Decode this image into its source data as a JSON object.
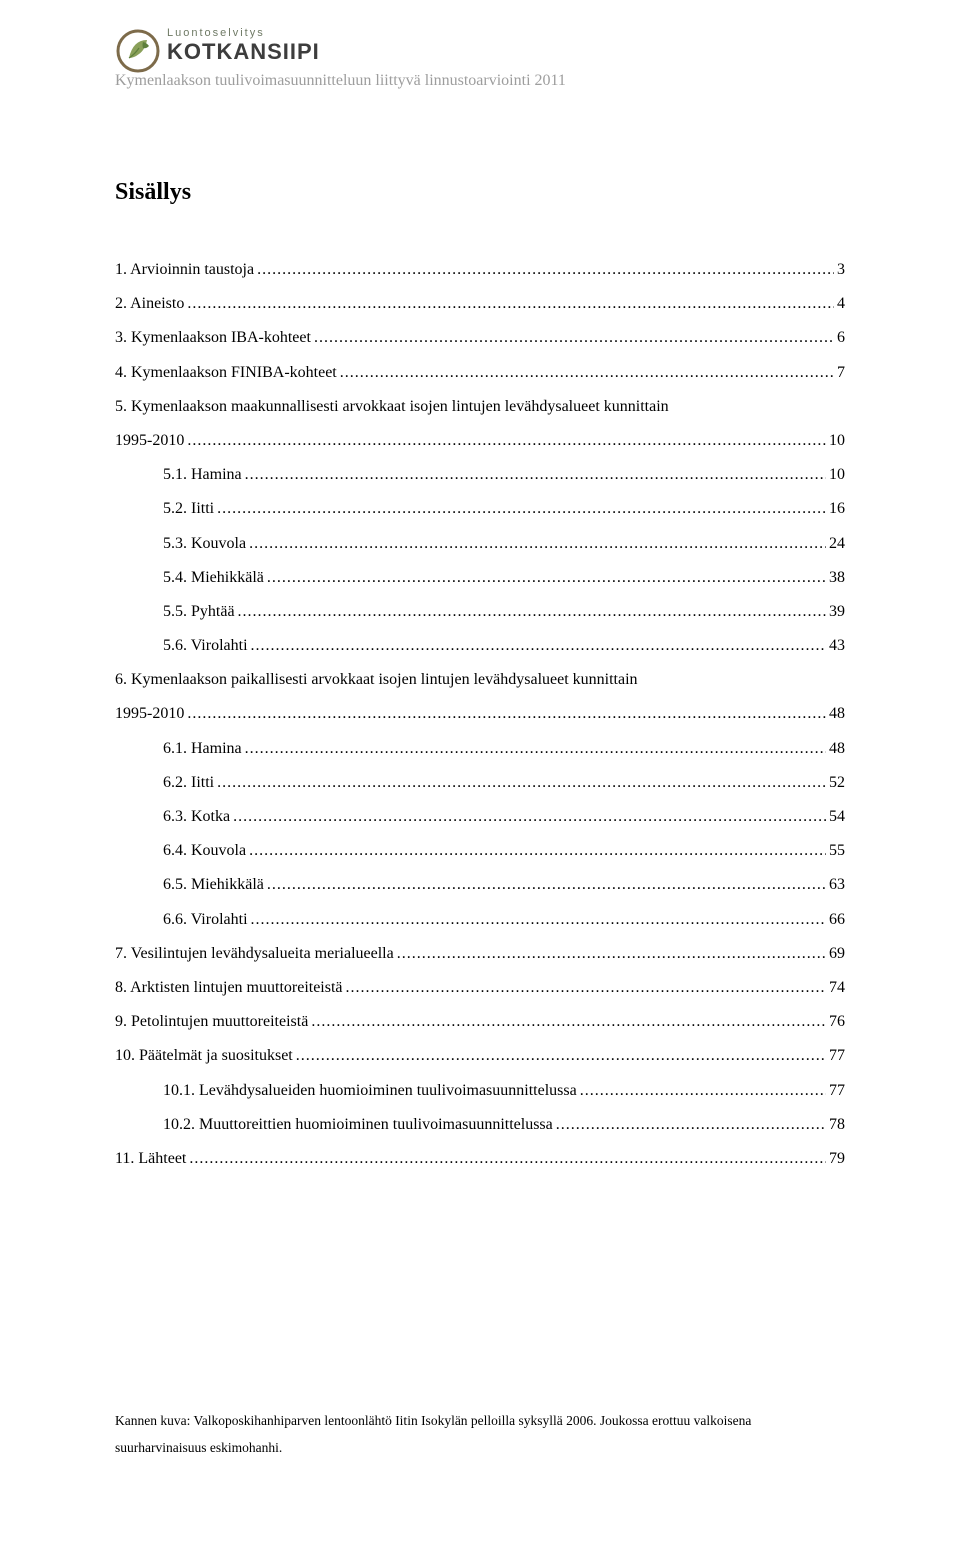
{
  "header": {
    "logo_top": "Luontoselvitys",
    "logo_bottom": "KOTKANSIIPI",
    "subline": "Kymenlaakson tuulivoimasuunnitteluun liittyvä linnustoarviointi 2011"
  },
  "toc_title": "Sisällys",
  "toc": [
    {
      "label": "1. Arvioinnin taustoja",
      "page": "3",
      "level": 0
    },
    {
      "label": "2. Aineisto",
      "page": "4",
      "level": 0
    },
    {
      "label": "3. Kymenlaakson IBA-kohteet",
      "page": "6",
      "level": 0
    },
    {
      "label": "4. Kymenlaakson FINIBA-kohteet",
      "page": "7",
      "level": 0
    },
    {
      "label": "5. Kymenlaakson maakunnallisesti arvokkaat isojen lintujen levähdysalueet kunnittain",
      "page": "",
      "level": 0,
      "nowrap": false
    },
    {
      "label": "1995-2010",
      "page": "10",
      "level": 0
    },
    {
      "label": "5.1. Hamina",
      "page": "10",
      "level": 1
    },
    {
      "label": "5.2. Iitti",
      "page": "16",
      "level": 1
    },
    {
      "label": "5.3. Kouvola",
      "page": "24",
      "level": 1
    },
    {
      "label": "5.4. Miehikkälä",
      "page": "38",
      "level": 1
    },
    {
      "label": "5.5. Pyhtää",
      "page": "39",
      "level": 1
    },
    {
      "label": "5.6. Virolahti",
      "page": "43",
      "level": 1
    },
    {
      "label": "6. Kymenlaakson paikallisesti arvokkaat isojen lintujen levähdysalueet kunnittain",
      "page": "",
      "level": 0,
      "nowrap": false
    },
    {
      "label": "1995-2010",
      "page": "48",
      "level": 0
    },
    {
      "label": "6.1. Hamina",
      "page": "48",
      "level": 1
    },
    {
      "label": "6.2. Iitti",
      "page": "52",
      "level": 1
    },
    {
      "label": "6.3. Kotka",
      "page": "54",
      "level": 1
    },
    {
      "label": "6.4. Kouvola",
      "page": "55",
      "level": 1
    },
    {
      "label": "6.5. Miehikkälä",
      "page": "63",
      "level": 1
    },
    {
      "label": "6.6. Virolahti",
      "page": "66",
      "level": 1
    },
    {
      "label": "7. Vesilintujen levähdysalueita merialueella",
      "page": "69",
      "level": 0
    },
    {
      "label": "8. Arktisten lintujen muuttoreiteistä",
      "page": "74",
      "level": 0
    },
    {
      "label": "9. Petolintujen muuttoreiteistä",
      "page": "76",
      "level": 0
    },
    {
      "label": "10. Päätelmät ja suositukset",
      "page": "77",
      "level": 0
    },
    {
      "label": "10.1. Levähdysalueiden huomioiminen tuulivoimasuunnittelussa",
      "page": "77",
      "level": 1
    },
    {
      "label": "10.2. Muuttoreittien huomioiminen tuulivoimasuunnittelussa",
      "page": "78",
      "level": 1
    },
    {
      "label": "11. Lähteet",
      "page": "79",
      "level": 0
    }
  ],
  "footnote": "Kannen kuva: Valkoposkihanhiparven lentoonlähtö Iitin Isokylän pelloilla syksyllä 2006. Joukossa erottuu valkoisena suurharvinaisuus eskimohanhi.",
  "colors": {
    "text": "#000000",
    "header_gray": "#9d9d9d",
    "logo_green": "#6f7a65",
    "logo_dark": "#3d3d3d",
    "logo_circle_stroke": "#7d6b4a",
    "logo_leaf": "#8aa05a",
    "logo_leaf_dark": "#5e7f3c",
    "background": "#ffffff"
  },
  "fonts": {
    "body_family": "Times New Roman",
    "body_size_pt": 12,
    "title_size_pt": 18,
    "footnote_size_pt": 10
  }
}
